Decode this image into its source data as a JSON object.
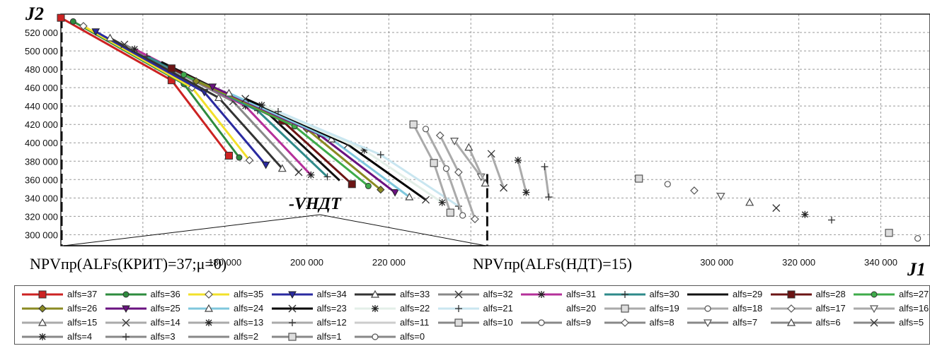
{
  "chart_data": {
    "type": "scatter",
    "y_axis_name": "J2",
    "x_axis_name": "J1",
    "xlim": [
      140000,
      352000
    ],
    "ylim": [
      288000,
      540000
    ],
    "x_ticks": [
      180000,
      200000,
      220000,
      300000,
      320000,
      340000
    ],
    "x_tick_labels": [
      "180 000",
      "200 000",
      "220 000",
      "300 000",
      "320 000",
      "340 000"
    ],
    "y_ticks": [
      300000,
      320000,
      340000,
      360000,
      380000,
      400000,
      420000,
      440000,
      460000,
      480000,
      500000,
      520000
    ],
    "y_tick_labels": [
      "300 000",
      "320 000",
      "340 000",
      "360 000",
      "380 000",
      "400 000",
      "420 000",
      "440 000",
      "460 000",
      "480 000",
      "500 000",
      "520 000"
    ],
    "grid": true,
    "legend_position": "bottom",
    "annotations": {
      "left_label": "NPVпр(ALFs(КРИТ)=37;μ=0)",
      "right_label": "NPVпр(ALFs(НДТ)=15)",
      "v_label": "-VНДТ"
    },
    "series": [
      {
        "name": "alfs=37",
        "color": "#cc2222",
        "marker": "square-filled",
        "points": [
          [
            140000,
            536000
          ],
          [
            167000,
            468000
          ],
          [
            181000,
            386000
          ]
        ]
      },
      {
        "name": "alfs=36",
        "color": "#2e8b3e",
        "marker": "circle-filled",
        "points": [
          [
            143000,
            532000
          ],
          [
            170000,
            464000
          ],
          [
            183500,
            384000
          ]
        ]
      },
      {
        "name": "alfs=35",
        "color": "#f2e02a",
        "marker": "diamond-open",
        "points": [
          [
            145500,
            527000
          ],
          [
            172000,
            460000
          ],
          [
            186000,
            381000
          ]
        ]
      },
      {
        "name": "alfs=34",
        "color": "#2a2aa0",
        "marker": "triangle-down-filled",
        "points": [
          [
            148500,
            521000
          ],
          [
            175000,
            455000
          ],
          [
            190000,
            376000
          ]
        ]
      },
      {
        "name": "alfs=33",
        "color": "#333333",
        "marker": "triangle-open",
        "points": [
          [
            152000,
            514000
          ],
          [
            178500,
            449000
          ],
          [
            194000,
            372000
          ]
        ]
      },
      {
        "name": "alfs=32",
        "color": "#888888",
        "marker": "x",
        "points": [
          [
            155500,
            507000
          ],
          [
            182000,
            445000
          ],
          [
            198000,
            368000
          ]
        ]
      },
      {
        "name": "alfs=31",
        "color": "#b5309a",
        "marker": "asterisk",
        "points": [
          [
            158000,
            502000
          ],
          [
            185000,
            440000
          ],
          [
            201000,
            365000
          ]
        ]
      },
      {
        "name": "alfs=30",
        "color": "#2e8a8a",
        "marker": "plus",
        "points": [
          [
            161000,
            494000
          ],
          [
            188000,
            435000
          ],
          [
            205000,
            363000
          ]
        ]
      },
      {
        "name": "alfs=29",
        "color": "#111111",
        "marker": "none",
        "points": [
          [
            164500,
            488000
          ],
          [
            191000,
            430000
          ],
          [
            208000,
            359000
          ]
        ]
      },
      {
        "name": "alfs=28",
        "color": "#6b1414",
        "marker": "square-filled",
        "points": [
          [
            167000,
            481000
          ],
          [
            194000,
            424000
          ],
          [
            211000,
            355000
          ]
        ]
      },
      {
        "name": "alfs=27",
        "color": "#3eab4a",
        "marker": "circle-filled",
        "points": [
          [
            170000,
            474000
          ],
          [
            197000,
            418000
          ],
          [
            215000,
            353000
          ]
        ]
      },
      {
        "name": "alfs=26",
        "color": "#8a8a22",
        "marker": "diamond-filled",
        "points": [
          [
            173000,
            467000
          ],
          [
            200000,
            415000
          ],
          [
            218000,
            349000
          ]
        ]
      },
      {
        "name": "alfs=25",
        "color": "#6a1280",
        "marker": "triangle-down-filled",
        "points": [
          [
            177000,
            461000
          ],
          [
            203000,
            409000
          ],
          [
            221500,
            346000
          ]
        ]
      },
      {
        "name": "alfs=24",
        "color": "#7fc7dd",
        "marker": "triangle-open",
        "points": [
          [
            181000,
            454000
          ],
          [
            206000,
            404000
          ],
          [
            225000,
            341000
          ]
        ]
      },
      {
        "name": "alfs=23",
        "color": "#000000",
        "marker": "x",
        "points": [
          [
            185000,
            448000
          ],
          [
            210000,
            398000
          ],
          [
            229000,
            338000
          ]
        ]
      },
      {
        "name": "alfs=22",
        "color": "#e3efe8",
        "marker": "asterisk",
        "points": [
          [
            189000,
            441000
          ],
          [
            214000,
            392000
          ],
          [
            233000,
            335000
          ]
        ]
      },
      {
        "name": "alfs=21",
        "color": "#c9e6f0",
        "marker": "plus",
        "points": [
          [
            193000,
            434000
          ],
          [
            218000,
            387000
          ],
          [
            237000,
            331000
          ]
        ]
      },
      {
        "name": "alfs=20",
        "color": "#ffffff",
        "marker": "none",
        "points": []
      },
      {
        "name": "alfs=19",
        "color": "#aaaaaa",
        "marker": "square-open",
        "points": [
          [
            226000,
            420000
          ],
          [
            231000,
            378000
          ],
          [
            235000,
            324000
          ]
        ]
      },
      {
        "name": "alfs=18",
        "color": "#aaaaaa",
        "marker": "circle-open",
        "points": [
          [
            229000,
            415000
          ],
          [
            234000,
            372000
          ],
          [
            238000,
            321000
          ]
        ]
      },
      {
        "name": "alfs=17",
        "color": "#aaaaaa",
        "marker": "diamond-open",
        "points": [
          [
            232500,
            408000
          ],
          [
            237000,
            368000
          ],
          [
            241000,
            317000
          ]
        ]
      },
      {
        "name": "alfs=16",
        "color": "#aaaaaa",
        "marker": "triangle-down-open",
        "points": [
          [
            236000,
            402000
          ],
          [
            242500,
            363000
          ]
        ]
      },
      {
        "name": "alfs=15",
        "color": "#aaaaaa",
        "marker": "triangle-open",
        "points": [
          [
            239500,
            395000
          ],
          [
            243500,
            356000
          ]
        ]
      },
      {
        "name": "alfs=14",
        "color": "#aaaaaa",
        "marker": "x",
        "points": [
          [
            245000,
            388000
          ],
          [
            248000,
            351000
          ]
        ]
      },
      {
        "name": "alfs=13",
        "color": "#aaaaaa",
        "marker": "asterisk",
        "points": [
          [
            251500,
            381000
          ],
          [
            253500,
            346000
          ]
        ]
      },
      {
        "name": "alfs=12",
        "color": "#aaaaaa",
        "marker": "plus",
        "points": [
          [
            258000,
            374000
          ],
          [
            259000,
            341000
          ]
        ]
      },
      {
        "name": "alfs=11",
        "color": "#cccccc",
        "marker": "none",
        "points": []
      },
      {
        "name": "alfs=10",
        "color": "#888888",
        "marker": "square-open",
        "points": [
          [
            281000,
            361000
          ]
        ]
      },
      {
        "name": "alfs=9",
        "color": "#888888",
        "marker": "circle-open",
        "points": [
          [
            288000,
            355000
          ]
        ]
      },
      {
        "name": "alfs=8",
        "color": "#888888",
        "marker": "diamond-open",
        "points": [
          [
            294500,
            348000
          ]
        ]
      },
      {
        "name": "alfs=7",
        "color": "#888888",
        "marker": "triangle-down-open",
        "points": [
          [
            301000,
            342000
          ]
        ]
      },
      {
        "name": "alfs=6",
        "color": "#888888",
        "marker": "triangle-open",
        "points": [
          [
            308000,
            335000
          ]
        ]
      },
      {
        "name": "alfs=5",
        "color": "#888888",
        "marker": "x",
        "points": [
          [
            314500,
            329000
          ]
        ]
      },
      {
        "name": "alfs=4",
        "color": "#888888",
        "marker": "asterisk",
        "points": [
          [
            321500,
            322000
          ]
        ]
      },
      {
        "name": "alfs=3",
        "color": "#888888",
        "marker": "plus",
        "points": [
          [
            328000,
            316000
          ]
        ]
      },
      {
        "name": "alfs=2",
        "color": "#888888",
        "marker": "none",
        "points": []
      },
      {
        "name": "alfs=1",
        "color": "#888888",
        "marker": "square-open",
        "points": [
          [
            342000,
            302000
          ]
        ]
      },
      {
        "name": "alfs=0",
        "color": "#888888",
        "marker": "circle-open",
        "points": [
          [
            349000,
            296000
          ]
        ]
      }
    ]
  }
}
